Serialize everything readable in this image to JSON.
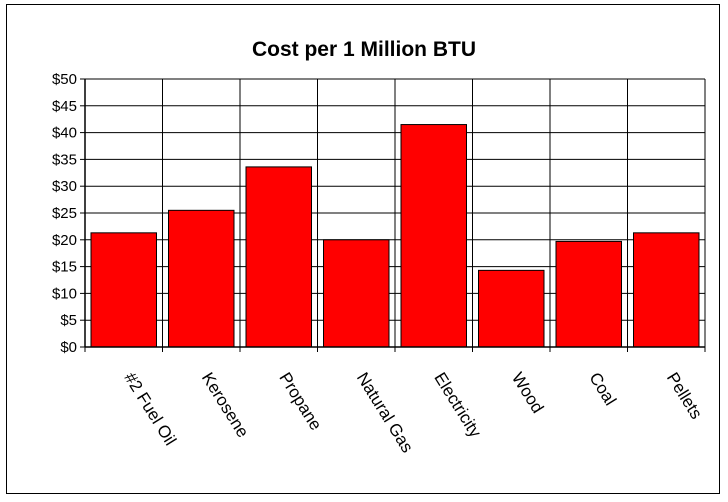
{
  "chart_data": {
    "type": "bar",
    "title": "Cost per 1 Million BTU",
    "xlabel": "",
    "ylabel": "",
    "categories": [
      "#2 Fuel Oil",
      "Kerosene",
      "Propane",
      "Natural Gas",
      "Electricity",
      "Wood",
      "Coal",
      "Pellets"
    ],
    "values": [
      21.3,
      25.5,
      33.6,
      20.0,
      41.5,
      14.3,
      19.7,
      21.3
    ],
    "ylim": [
      0,
      50
    ],
    "yticks": [
      "$0",
      "$5",
      "$10",
      "$15",
      "$20",
      "$25",
      "$30",
      "$35",
      "$40",
      "$45",
      "$50"
    ],
    "grid": true,
    "legend": "none",
    "bar_color": "#ff0000",
    "category_label_rotation": "diagonal"
  }
}
